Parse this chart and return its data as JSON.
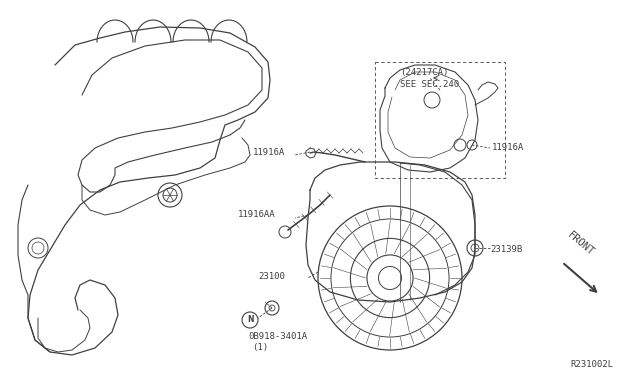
{
  "bg_color": "#ffffff",
  "line_color": "#404040",
  "text_color": "#404040",
  "labels": {
    "part_24217CA": "(24217CA)\nSEE SEC.240",
    "part_11916A_left": "11916A",
    "part_11916A_right": "11916A",
    "part_11916AA": "11916AA",
    "part_23100": "23100",
    "part_23139B": "23139B",
    "part_bolt_id": "0B918-3401A",
    "part_bolt_qty": "(1)",
    "front_label": "FRONT",
    "diagram_id": "R231002L"
  },
  "figsize": [
    6.4,
    3.72
  ],
  "dpi": 100
}
